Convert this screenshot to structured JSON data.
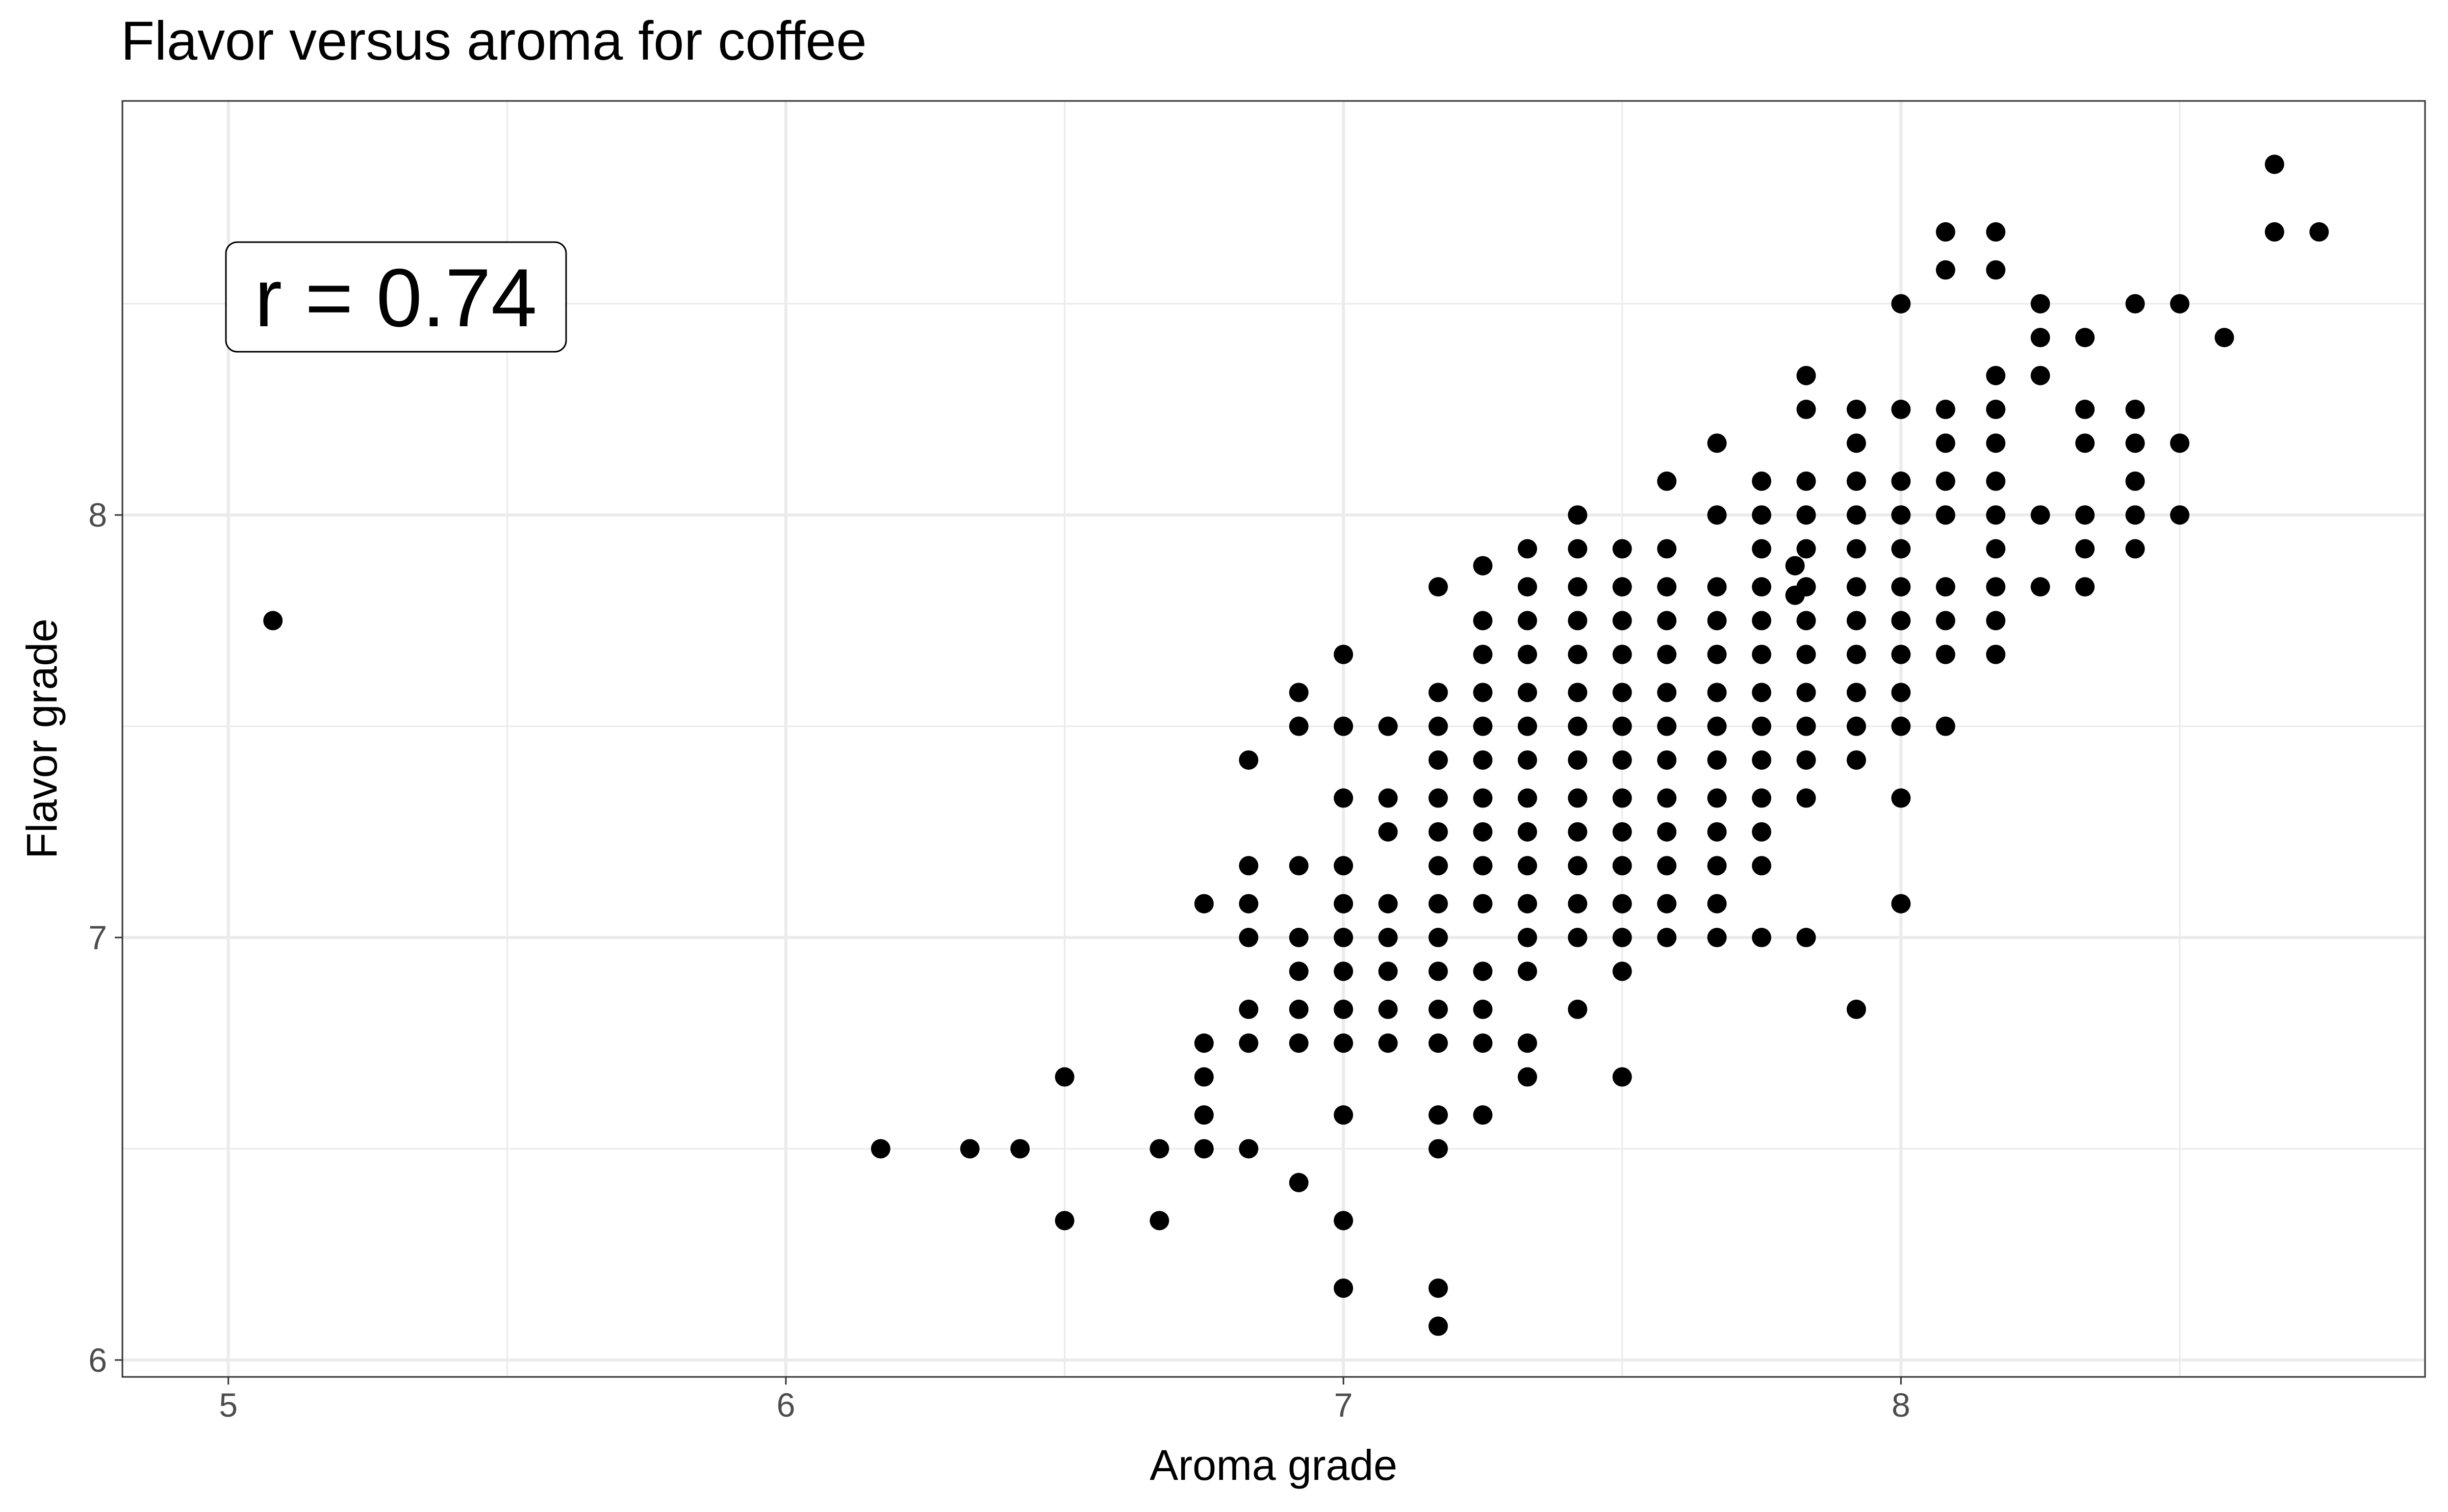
{
  "chart_data": {
    "type": "scatter",
    "title": "Flavor versus aroma for coffee",
    "xlabel": "Aroma grade",
    "ylabel": "Flavor grade",
    "xlim": [
      4.81,
      8.94
    ],
    "ylim": [
      5.96,
      8.98
    ],
    "x_ticks": [
      5,
      6,
      7,
      8
    ],
    "y_ticks": [
      6,
      7,
      8
    ],
    "x_tick_labels": [
      "5",
      "6",
      "7",
      "8"
    ],
    "y_tick_labels": [
      "6",
      "7",
      "8"
    ],
    "grid": true,
    "annotation": {
      "text": "r = 0.74",
      "position": "top-left"
    },
    "colors": {
      "points": "#000000",
      "grid": "#ebebeb",
      "panel_border": "#333333"
    },
    "points": [
      [
        5.08,
        7.75
      ],
      [
        6.17,
        6.5
      ],
      [
        6.33,
        6.5
      ],
      [
        6.42,
        6.5
      ],
      [
        6.5,
        6.67
      ],
      [
        6.5,
        6.33
      ],
      [
        6.67,
        6.5
      ],
      [
        6.67,
        6.33
      ],
      [
        6.75,
        7.08
      ],
      [
        6.75,
        6.75
      ],
      [
        6.75,
        6.67
      ],
      [
        6.75,
        6.58
      ],
      [
        6.75,
        6.5
      ],
      [
        6.83,
        7.42
      ],
      [
        6.83,
        7.17
      ],
      [
        6.83,
        7.08
      ],
      [
        6.83,
        7.0
      ],
      [
        6.83,
        6.83
      ],
      [
        6.83,
        6.75
      ],
      [
        6.83,
        6.5
      ],
      [
        6.92,
        7.58
      ],
      [
        6.92,
        7.5
      ],
      [
        6.92,
        7.17
      ],
      [
        6.92,
        7.0
      ],
      [
        6.92,
        6.92
      ],
      [
        6.92,
        6.83
      ],
      [
        6.92,
        6.75
      ],
      [
        6.92,
        6.42
      ],
      [
        7.0,
        7.67
      ],
      [
        7.0,
        7.5
      ],
      [
        7.0,
        7.33
      ],
      [
        7.0,
        7.17
      ],
      [
        7.0,
        7.08
      ],
      [
        7.0,
        7.0
      ],
      [
        7.0,
        6.92
      ],
      [
        7.0,
        6.83
      ],
      [
        7.0,
        6.75
      ],
      [
        7.0,
        6.58
      ],
      [
        7.0,
        6.33
      ],
      [
        7.0,
        6.17
      ],
      [
        7.08,
        7.5
      ],
      [
        7.08,
        7.33
      ],
      [
        7.08,
        7.25
      ],
      [
        7.08,
        7.08
      ],
      [
        7.08,
        7.0
      ],
      [
        7.08,
        6.92
      ],
      [
        7.08,
        6.83
      ],
      [
        7.08,
        6.75
      ],
      [
        7.17,
        7.83
      ],
      [
        7.17,
        7.58
      ],
      [
        7.17,
        7.5
      ],
      [
        7.17,
        7.42
      ],
      [
        7.17,
        7.33
      ],
      [
        7.17,
        7.25
      ],
      [
        7.17,
        7.17
      ],
      [
        7.17,
        7.08
      ],
      [
        7.17,
        7.0
      ],
      [
        7.17,
        6.92
      ],
      [
        7.17,
        6.83
      ],
      [
        7.17,
        6.75
      ],
      [
        7.17,
        6.58
      ],
      [
        7.17,
        6.5
      ],
      [
        7.17,
        6.17
      ],
      [
        7.17,
        6.08
      ],
      [
        7.25,
        7.88
      ],
      [
        7.25,
        7.75
      ],
      [
        7.25,
        7.67
      ],
      [
        7.25,
        7.58
      ],
      [
        7.25,
        7.5
      ],
      [
        7.25,
        7.42
      ],
      [
        7.25,
        7.33
      ],
      [
        7.25,
        7.25
      ],
      [
        7.25,
        7.17
      ],
      [
        7.25,
        7.08
      ],
      [
        7.25,
        6.92
      ],
      [
        7.25,
        6.83
      ],
      [
        7.25,
        6.75
      ],
      [
        7.25,
        6.58
      ],
      [
        7.33,
        7.92
      ],
      [
        7.33,
        7.83
      ],
      [
        7.33,
        7.75
      ],
      [
        7.33,
        7.67
      ],
      [
        7.33,
        7.58
      ],
      [
        7.33,
        7.5
      ],
      [
        7.33,
        7.42
      ],
      [
        7.33,
        7.33
      ],
      [
        7.33,
        7.25
      ],
      [
        7.33,
        7.17
      ],
      [
        7.33,
        7.08
      ],
      [
        7.33,
        7.0
      ],
      [
        7.33,
        6.92
      ],
      [
        7.33,
        6.75
      ],
      [
        7.33,
        6.67
      ],
      [
        7.42,
        8.0
      ],
      [
        7.42,
        7.92
      ],
      [
        7.42,
        7.83
      ],
      [
        7.42,
        7.75
      ],
      [
        7.42,
        7.67
      ],
      [
        7.42,
        7.58
      ],
      [
        7.42,
        7.5
      ],
      [
        7.42,
        7.42
      ],
      [
        7.42,
        7.33
      ],
      [
        7.42,
        7.25
      ],
      [
        7.42,
        7.17
      ],
      [
        7.42,
        7.08
      ],
      [
        7.42,
        7.0
      ],
      [
        7.42,
        6.83
      ],
      [
        7.5,
        7.92
      ],
      [
        7.5,
        7.83
      ],
      [
        7.5,
        7.75
      ],
      [
        7.5,
        7.67
      ],
      [
        7.5,
        7.58
      ],
      [
        7.5,
        7.5
      ],
      [
        7.5,
        7.42
      ],
      [
        7.5,
        7.33
      ],
      [
        7.5,
        7.25
      ],
      [
        7.5,
        7.17
      ],
      [
        7.5,
        7.08
      ],
      [
        7.5,
        7.0
      ],
      [
        7.5,
        6.92
      ],
      [
        7.5,
        6.67
      ],
      [
        7.58,
        8.08
      ],
      [
        7.58,
        7.92
      ],
      [
        7.58,
        7.83
      ],
      [
        7.58,
        7.75
      ],
      [
        7.58,
        7.67
      ],
      [
        7.58,
        7.58
      ],
      [
        7.58,
        7.5
      ],
      [
        7.58,
        7.42
      ],
      [
        7.58,
        7.33
      ],
      [
        7.58,
        7.25
      ],
      [
        7.58,
        7.17
      ],
      [
        7.58,
        7.08
      ],
      [
        7.58,
        7.0
      ],
      [
        7.67,
        8.17
      ],
      [
        7.67,
        8.0
      ],
      [
        7.67,
        7.83
      ],
      [
        7.67,
        7.75
      ],
      [
        7.67,
        7.67
      ],
      [
        7.67,
        7.58
      ],
      [
        7.67,
        7.5
      ],
      [
        7.67,
        7.42
      ],
      [
        7.67,
        7.33
      ],
      [
        7.67,
        7.25
      ],
      [
        7.67,
        7.17
      ],
      [
        7.67,
        7.08
      ],
      [
        7.67,
        7.0
      ],
      [
        7.75,
        8.08
      ],
      [
        7.75,
        8.0
      ],
      [
        7.75,
        7.92
      ],
      [
        7.75,
        7.83
      ],
      [
        7.75,
        7.75
      ],
      [
        7.75,
        7.67
      ],
      [
        7.75,
        7.58
      ],
      [
        7.75,
        7.5
      ],
      [
        7.75,
        7.42
      ],
      [
        7.75,
        7.33
      ],
      [
        7.75,
        7.25
      ],
      [
        7.75,
        7.17
      ],
      [
        7.75,
        7.0
      ],
      [
        7.81,
        7.88
      ],
      [
        7.81,
        7.81
      ],
      [
        7.83,
        8.33
      ],
      [
        7.83,
        8.25
      ],
      [
        7.83,
        8.08
      ],
      [
        7.83,
        8.0
      ],
      [
        7.83,
        7.92
      ],
      [
        7.83,
        7.83
      ],
      [
        7.83,
        7.75
      ],
      [
        7.83,
        7.67
      ],
      [
        7.83,
        7.58
      ],
      [
        7.83,
        7.5
      ],
      [
        7.83,
        7.42
      ],
      [
        7.83,
        7.33
      ],
      [
        7.83,
        7.0
      ],
      [
        7.92,
        8.25
      ],
      [
        7.92,
        8.17
      ],
      [
        7.92,
        8.08
      ],
      [
        7.92,
        8.0
      ],
      [
        7.92,
        7.92
      ],
      [
        7.92,
        7.83
      ],
      [
        7.92,
        7.75
      ],
      [
        7.92,
        7.67
      ],
      [
        7.92,
        7.58
      ],
      [
        7.92,
        7.5
      ],
      [
        7.92,
        7.42
      ],
      [
        7.92,
        6.83
      ],
      [
        8.0,
        8.5
      ],
      [
        8.0,
        8.25
      ],
      [
        8.0,
        8.08
      ],
      [
        8.0,
        8.0
      ],
      [
        8.0,
        7.92
      ],
      [
        8.0,
        7.83
      ],
      [
        8.0,
        7.75
      ],
      [
        8.0,
        7.67
      ],
      [
        8.0,
        7.58
      ],
      [
        8.0,
        7.5
      ],
      [
        8.0,
        7.33
      ],
      [
        8.0,
        7.08
      ],
      [
        8.08,
        8.67
      ],
      [
        8.08,
        8.58
      ],
      [
        8.08,
        8.25
      ],
      [
        8.08,
        8.17
      ],
      [
        8.08,
        8.08
      ],
      [
        8.08,
        8.0
      ],
      [
        8.08,
        7.83
      ],
      [
        8.08,
        7.75
      ],
      [
        8.08,
        7.67
      ],
      [
        8.08,
        7.5
      ],
      [
        8.17,
        8.67
      ],
      [
        8.17,
        8.58
      ],
      [
        8.17,
        8.33
      ],
      [
        8.17,
        8.25
      ],
      [
        8.17,
        8.17
      ],
      [
        8.17,
        8.08
      ],
      [
        8.17,
        8.0
      ],
      [
        8.17,
        7.92
      ],
      [
        8.17,
        7.83
      ],
      [
        8.17,
        7.75
      ],
      [
        8.17,
        7.67
      ],
      [
        8.25,
        8.5
      ],
      [
        8.25,
        8.42
      ],
      [
        8.25,
        8.33
      ],
      [
        8.25,
        8.0
      ],
      [
        8.25,
        7.83
      ],
      [
        8.33,
        8.42
      ],
      [
        8.33,
        8.25
      ],
      [
        8.33,
        8.17
      ],
      [
        8.33,
        8.0
      ],
      [
        8.33,
        7.92
      ],
      [
        8.33,
        7.83
      ],
      [
        8.42,
        8.5
      ],
      [
        8.42,
        8.25
      ],
      [
        8.42,
        8.17
      ],
      [
        8.42,
        8.08
      ],
      [
        8.42,
        8.0
      ],
      [
        8.42,
        7.92
      ],
      [
        8.5,
        8.5
      ],
      [
        8.5,
        8.17
      ],
      [
        8.5,
        8.0
      ],
      [
        8.58,
        8.42
      ],
      [
        8.67,
        8.83
      ],
      [
        8.67,
        8.67
      ],
      [
        8.75,
        8.67
      ]
    ]
  }
}
